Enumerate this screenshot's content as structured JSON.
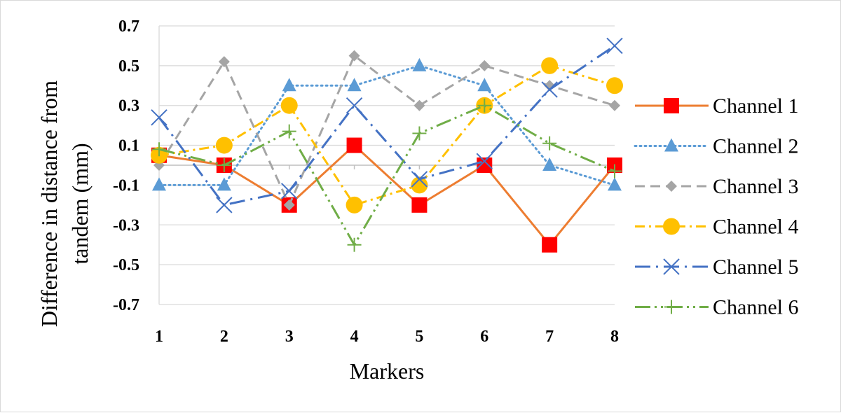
{
  "chart_data": {
    "type": "line",
    "title": "",
    "xlabel": "Markers",
    "ylabel_lines": [
      "Difference in distance from",
      "tandem (mm)"
    ],
    "categories": [
      "1",
      "2",
      "3",
      "4",
      "5",
      "6",
      "7",
      "8"
    ],
    "yticks": [
      "0.7",
      "0.5",
      "0.3",
      "0.1",
      "-0.1",
      "-0.3",
      "-0.5",
      "-0.7"
    ],
    "ylim": [
      -0.7,
      0.7
    ],
    "grid": "horizontal",
    "legend_position": "right",
    "series": [
      {
        "name": "Channel 1",
        "color": "#ED7D31",
        "marker": "square",
        "marker_color": "#FF0000",
        "dash": "solid",
        "values": [
          0.05,
          0.0,
          -0.2,
          0.1,
          -0.2,
          0.0,
          -0.4,
          0.0
        ]
      },
      {
        "name": "Channel 2",
        "color": "#5B9BD5",
        "marker": "triangle",
        "marker_color": "#5B9BD5",
        "dash": "dot",
        "values": [
          -0.1,
          -0.1,
          0.4,
          0.4,
          0.5,
          0.4,
          0.0,
          -0.1
        ]
      },
      {
        "name": "Channel 3",
        "color": "#A5A5A5",
        "marker": "diamond",
        "marker_color": "#A5A5A5",
        "dash": "dash",
        "values": [
          0.0,
          0.52,
          -0.2,
          0.55,
          0.3,
          0.5,
          0.4,
          0.3
        ]
      },
      {
        "name": "Channel 4",
        "color": "#FFC000",
        "marker": "circle",
        "marker_color": "#FFC000",
        "dash": "dashdot",
        "values": [
          0.05,
          0.1,
          0.3,
          -0.2,
          -0.1,
          0.3,
          0.5,
          0.4
        ]
      },
      {
        "name": "Channel 5",
        "color": "#4472C4",
        "marker": "x",
        "marker_color": "#4472C4",
        "dash": "longdashdot",
        "values": [
          0.24,
          -0.2,
          -0.13,
          0.3,
          -0.07,
          0.02,
          0.38,
          0.6
        ]
      },
      {
        "name": "Channel 6",
        "color": "#70AD47",
        "marker": "plus",
        "marker_color": "#70AD47",
        "dash": "longdashdotdot",
        "values": [
          0.08,
          0.0,
          0.17,
          -0.4,
          0.16,
          0.3,
          0.11,
          -0.03
        ]
      }
    ]
  }
}
